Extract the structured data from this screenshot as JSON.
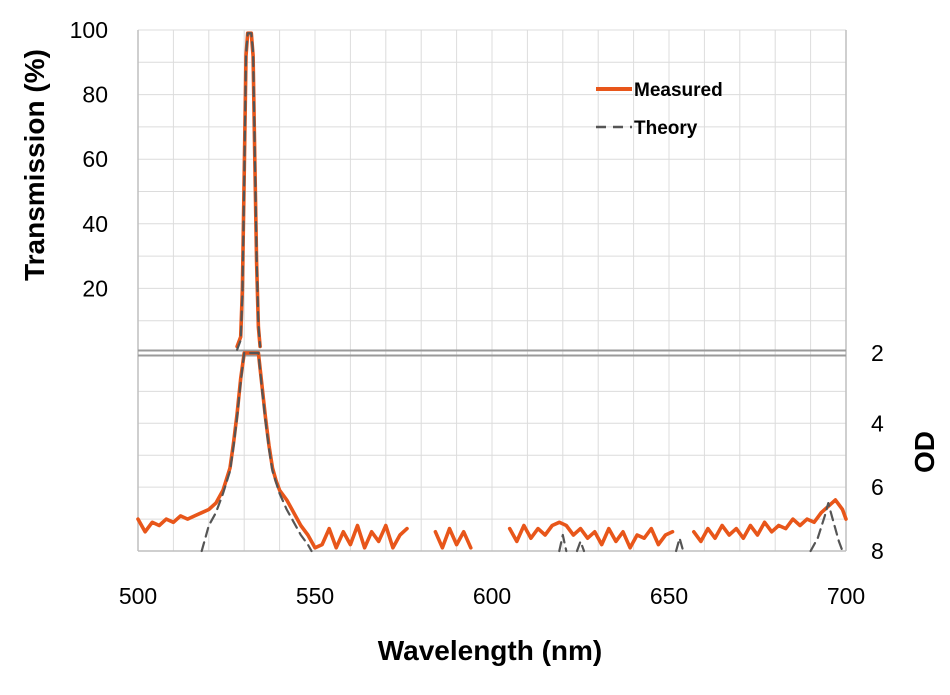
{
  "chart_data": {
    "type": "line",
    "title": "",
    "xlabel": "Wavelength (nm)",
    "ylabel_left": "Transmission (%)",
    "ylabel_right": "OD",
    "xlim": [
      500,
      700
    ],
    "x_ticks": [
      "500",
      "550",
      "600",
      "650",
      "700"
    ],
    "top_panel": {
      "quantity": "Transmission (%)",
      "ylim": [
        0,
        100
      ],
      "y_ticks": [
        "20",
        "40",
        "60",
        "80",
        "100"
      ]
    },
    "bottom_panel": {
      "quantity": "OD",
      "ylim": [
        1.8,
        8
      ],
      "y_ticks": [
        "2",
        "4",
        "6",
        "8"
      ]
    },
    "grid": true,
    "legend_position": "top-right",
    "series": [
      {
        "name": "Measured",
        "color": "#e8561a",
        "style": "solid",
        "transmission": [
          [
            528,
            2
          ],
          [
            529,
            5
          ],
          [
            529.5,
            20
          ],
          [
            530,
            55
          ],
          [
            530.5,
            92
          ],
          [
            531,
            99
          ],
          [
            532,
            99
          ],
          [
            532.5,
            92
          ],
          [
            533,
            60
          ],
          [
            533.5,
            28
          ],
          [
            534,
            8
          ],
          [
            534.5,
            2
          ]
        ],
        "od": [
          [
            500,
            7.0
          ],
          [
            502,
            7.4
          ],
          [
            504,
            7.1
          ],
          [
            506,
            7.2
          ],
          [
            508,
            7.0
          ],
          [
            510,
            7.1
          ],
          [
            512,
            6.9
          ],
          [
            514,
            7.0
          ],
          [
            516,
            6.9
          ],
          [
            518,
            6.8
          ],
          [
            520,
            6.7
          ],
          [
            522,
            6.5
          ],
          [
            524,
            6.1
          ],
          [
            526,
            5.4
          ],
          [
            527,
            4.6
          ],
          [
            528,
            3.7
          ],
          [
            529,
            2.6
          ],
          [
            530,
            1.8
          ],
          [
            534,
            1.8
          ],
          [
            535,
            2.8
          ],
          [
            536,
            3.8
          ],
          [
            537,
            4.7
          ],
          [
            538,
            5.4
          ],
          [
            539,
            5.8
          ],
          [
            540,
            6.1
          ],
          [
            542,
            6.4
          ],
          [
            544,
            6.8
          ],
          [
            546,
            7.2
          ],
          [
            548,
            7.5
          ],
          [
            550,
            7.9
          ],
          [
            552,
            7.8
          ],
          [
            554,
            7.3
          ],
          [
            556,
            7.9
          ],
          [
            558,
            7.4
          ],
          [
            560,
            7.8
          ],
          [
            562,
            7.2
          ],
          [
            564,
            7.9
          ],
          [
            566,
            7.4
          ],
          [
            568,
            7.7
          ],
          [
            570,
            7.2
          ],
          [
            572,
            7.9
          ],
          [
            574,
            7.5
          ],
          [
            576,
            7.3
          ],
          [
            578,
            null
          ],
          [
            584,
            7.4
          ],
          [
            586,
            7.9
          ],
          [
            588,
            7.3
          ],
          [
            590,
            7.8
          ],
          [
            592,
            7.4
          ],
          [
            594,
            7.9
          ],
          [
            596,
            null
          ],
          [
            605,
            7.3
          ],
          [
            607,
            7.7
          ],
          [
            609,
            7.2
          ],
          [
            611,
            7.6
          ],
          [
            613,
            7.3
          ],
          [
            615,
            7.5
          ],
          [
            617,
            7.2
          ],
          [
            619,
            7.1
          ],
          [
            621,
            7.2
          ],
          [
            623,
            7.5
          ],
          [
            625,
            7.3
          ],
          [
            627,
            7.6
          ],
          [
            629,
            7.4
          ],
          [
            631,
            7.8
          ],
          [
            633,
            7.3
          ],
          [
            635,
            7.7
          ],
          [
            637,
            7.4
          ],
          [
            639,
            7.9
          ],
          [
            641,
            7.5
          ],
          [
            643,
            7.6
          ],
          [
            645,
            7.3
          ],
          [
            647,
            7.8
          ],
          [
            649,
            7.5
          ],
          [
            651,
            7.4
          ],
          [
            653,
            null
          ],
          [
            657,
            7.4
          ],
          [
            659,
            7.7
          ],
          [
            661,
            7.3
          ],
          [
            663,
            7.6
          ],
          [
            665,
            7.2
          ],
          [
            667,
            7.5
          ],
          [
            669,
            7.3
          ],
          [
            671,
            7.6
          ],
          [
            673,
            7.2
          ],
          [
            675,
            7.5
          ],
          [
            677,
            7.1
          ],
          [
            679,
            7.4
          ],
          [
            681,
            7.2
          ],
          [
            683,
            7.3
          ],
          [
            685,
            7.0
          ],
          [
            687,
            7.2
          ],
          [
            689,
            7.0
          ],
          [
            691,
            7.1
          ],
          [
            693,
            6.8
          ],
          [
            695,
            6.6
          ],
          [
            697,
            6.4
          ],
          [
            699,
            6.7
          ],
          [
            700,
            7.0
          ]
        ]
      },
      {
        "name": "Theory",
        "color": "#555555",
        "style": "dashed",
        "transmission": [
          [
            528,
            1
          ],
          [
            529,
            4
          ],
          [
            529.5,
            18
          ],
          [
            530,
            53
          ],
          [
            530.5,
            92
          ],
          [
            531,
            99
          ],
          [
            532,
            99
          ],
          [
            532.5,
            93
          ],
          [
            533,
            62
          ],
          [
            533.5,
            30
          ],
          [
            534,
            9
          ],
          [
            534.5,
            2
          ]
        ],
        "od": [
          [
            518,
            8.0
          ],
          [
            519,
            7.6
          ],
          [
            520,
            7.2
          ],
          [
            522,
            6.8
          ],
          [
            524,
            6.2
          ],
          [
            526,
            5.5
          ],
          [
            527,
            4.7
          ],
          [
            528,
            3.8
          ],
          [
            529,
            2.7
          ],
          [
            530,
            1.8
          ],
          [
            534,
            1.8
          ],
          [
            535,
            2.9
          ],
          [
            536,
            3.9
          ],
          [
            537,
            4.8
          ],
          [
            538,
            5.5
          ],
          [
            540,
            6.2
          ],
          [
            542,
            6.7
          ],
          [
            544,
            7.1
          ],
          [
            546,
            7.5
          ],
          [
            548,
            7.8
          ],
          [
            549,
            8.0
          ],
          [
            null,
            null
          ],
          [
            619,
            8.0
          ],
          [
            620,
            7.5
          ],
          [
            621,
            8.0
          ],
          [
            null,
            null
          ],
          [
            624,
            8.0
          ],
          [
            625,
            7.7
          ],
          [
            626,
            8.0
          ],
          [
            null,
            null
          ],
          [
            652,
            8.0
          ],
          [
            653,
            7.6
          ],
          [
            654,
            8.0
          ],
          [
            null,
            null
          ],
          [
            690,
            8.0
          ],
          [
            692,
            7.6
          ],
          [
            694,
            6.9
          ],
          [
            695,
            6.5
          ],
          [
            696,
            6.9
          ],
          [
            698,
            7.7
          ],
          [
            699,
            8.0
          ]
        ]
      }
    ]
  }
}
